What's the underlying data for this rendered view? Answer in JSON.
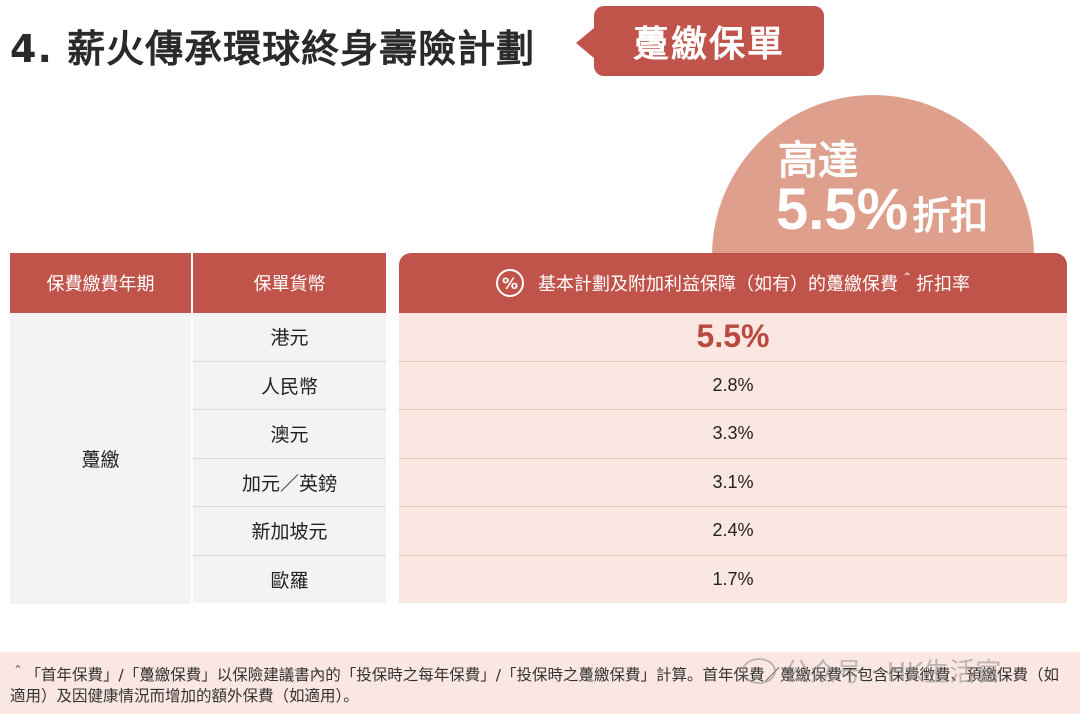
{
  "header": {
    "title": "4. 薪火傳承環球終身壽險計劃",
    "badge": "躉繳保單"
  },
  "highlight": {
    "line1": "高達",
    "rate": "5.5%",
    "label": "折扣"
  },
  "table": {
    "headers": {
      "col1": "保費繳費年期",
      "col2": "保單貨幣",
      "pct_icon": "%",
      "col3": "基本計劃及附加利益保障（如有）的躉繳保費＾折扣率"
    },
    "term": "躉繳",
    "rows": [
      {
        "currency": "港元",
        "rate": "5.5%"
      },
      {
        "currency": "人民幣",
        "rate": "2.8%"
      },
      {
        "currency": "澳元",
        "rate": "3.3%"
      },
      {
        "currency": "加元／英鎊",
        "rate": "3.1%"
      },
      {
        "currency": "新加坡元",
        "rate": "2.4%"
      },
      {
        "currency": "歐羅",
        "rate": "1.7%"
      }
    ]
  },
  "footnote": "＾「首年保費」/「躉繳保費」以保險建議書內的「投保時之每年保費」/「投保時之躉繳保費」計算。首年保費／躉繳保費不包含保費徵費、預繳保費（如適用）及因健康情況而增加的額外保費（如適用）。",
  "watermark": "公众号 · HK生活官",
  "colors": {
    "accent": "#c0534a",
    "bubble": "#dea08c",
    "rate_bg": "#fbe7e1"
  }
}
